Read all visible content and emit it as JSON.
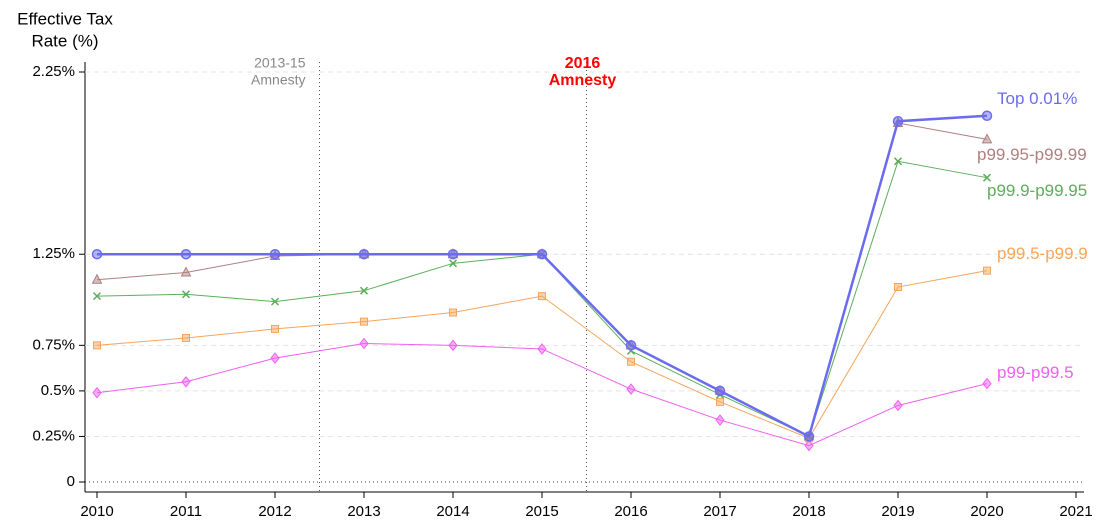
{
  "chart_data": {
    "type": "line",
    "ylabel": [
      "Effective Tax",
      "Rate (%)"
    ],
    "x": [
      2010,
      2011,
      2012,
      2013,
      2014,
      2015,
      2016,
      2017,
      2018,
      2019,
      2020
    ],
    "xlim": [
      2010,
      2021
    ],
    "xticks": [
      2010,
      2011,
      2012,
      2013,
      2014,
      2015,
      2016,
      2017,
      2018,
      2019,
      2020,
      2021
    ],
    "ylim": [
      0,
      2.25
    ],
    "yticks": [
      0,
      {
        "value": 0.25,
        "label": "0.25%"
      },
      {
        "value": 0.5,
        "label": "0.5%"
      },
      {
        "value": 0.75,
        "label": "0.75%"
      },
      {
        "value": 1.25,
        "label": "1.25%"
      },
      {
        "value": 2.25,
        "label": "2.25%"
      }
    ],
    "grid": true,
    "annotations": [
      {
        "lines": [
          "2013-15",
          "Amnesty"
        ],
        "x": 2012.5,
        "color": "#888888",
        "bold": false
      },
      {
        "lines": [
          "2016",
          "Amnesty"
        ],
        "x": 2015.5,
        "color": "#ff0000",
        "bold": true
      }
    ],
    "series": [
      {
        "name": "Top 0.01%",
        "color": "#6b6bef",
        "marker": "circle",
        "width": 2.5,
        "values": [
          1.25,
          1.25,
          1.25,
          1.25,
          1.25,
          1.25,
          0.75,
          0.5,
          0.25,
          1.98,
          2.01
        ]
      },
      {
        "name": "p99.95-p99.99",
        "color": "#b07f7f",
        "marker": "triangle",
        "width": 1,
        "values": [
          1.11,
          1.15,
          1.24,
          1.25,
          1.25,
          1.25,
          0.75,
          0.5,
          0.25,
          1.97,
          1.88
        ]
      },
      {
        "name": "p99.9-p99.95",
        "color": "#5cae5c",
        "marker": "cross",
        "width": 1,
        "values": [
          1.02,
          1.03,
          0.99,
          1.05,
          1.2,
          1.25,
          0.72,
          0.48,
          0.25,
          1.76,
          1.67
        ]
      },
      {
        "name": "p99.5-p99.9",
        "color": "#f5a55a",
        "marker": "square",
        "width": 1,
        "values": [
          0.75,
          0.79,
          0.84,
          0.88,
          0.93,
          1.02,
          0.66,
          0.44,
          0.24,
          1.07,
          1.16
        ]
      },
      {
        "name": "p99-p99.5",
        "color": "#f060f0",
        "marker": "diamond",
        "width": 1,
        "values": [
          0.49,
          0.55,
          0.68,
          0.76,
          0.75,
          0.73,
          0.51,
          0.34,
          0.2,
          0.42,
          0.54
        ]
      }
    ]
  }
}
